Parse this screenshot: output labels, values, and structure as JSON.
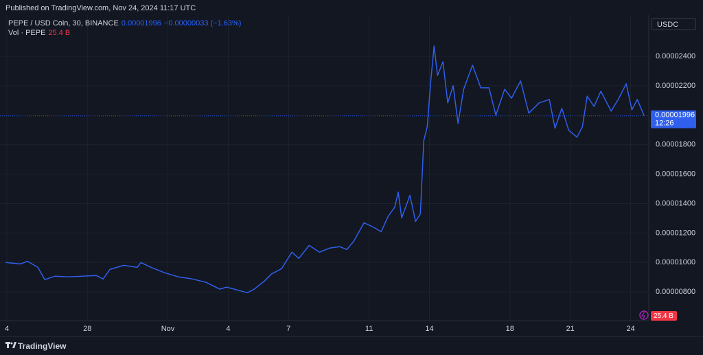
{
  "header": "Published on TradingView.com, Nov 24, 2024 11:17 UTC",
  "legend": {
    "symbol": "PEPE / USD Coin, 30, BINANCE",
    "last": "0.00001996",
    "change": "−0.00000033 (−1.63%)",
    "volume_name": "Vol · PEPE",
    "volume": "25.4 B"
  },
  "currency": "USDC",
  "countdown": "12:26",
  "brand": "TradingView",
  "chart_data": {
    "type": "line",
    "x": [
      -0.07,
      0.68,
      1.02,
      1.54,
      1.88,
      2.39,
      3.07,
      3.75,
      4.44,
      4.78,
      5.12,
      5.8,
      6.48,
      6.66,
      7.17,
      7.85,
      8.53,
      9.22,
      9.9,
      10.58,
      10.92,
      11.43,
      11.95,
      12.29,
      12.8,
      13.14,
      13.65,
      14.16,
      14.51,
      15.02,
      15.53,
      16.04,
      16.55,
      16.89,
      17.24,
      17.75,
      18.26,
      18.6,
      18.94,
      19.28,
      19.45,
      19.62,
      20.03,
      20.31,
      20.55,
      20.72,
      20.89,
      21.06,
      21.23,
      21.4,
      21.67,
      21.91,
      22.18,
      22.42,
      22.7,
      23.14,
      23.55,
      23.96,
      24.3,
      24.74,
      25.08,
      25.53,
      25.94,
      26.45,
      26.96,
      27.24,
      27.58,
      27.92,
      28.33,
      28.6,
      28.84,
      29.18,
      29.52,
      30.03,
      30.38,
      30.78,
      31.06,
      31.33,
      31.67
    ],
    "series": [
      {
        "name": "PEPE / USD Coin",
        "color": "#2f5fec",
        "values": [
          1e-05,
          9.9e-06,
          1.009e-05,
          9.67e-06,
          8.84e-06,
          9.07e-06,
          9.02e-06,
          9.07e-06,
          9.12e-06,
          8.88e-06,
          9.53e-06,
          9.81e-06,
          9.67e-06,
          1e-05,
          9.67e-06,
          9.3e-06,
          9.02e-06,
          8.88e-06,
          8.65e-06,
          8.19e-06,
          8.33e-06,
          8.14e-06,
          7.95e-06,
          8.19e-06,
          8.74e-06,
          9.21e-06,
          9.58e-06,
          1.07e-05,
          1.028e-05,
          1.116e-05,
          1.07e-05,
          1.098e-05,
          1.107e-05,
          1.088e-05,
          1.144e-05,
          1.27e-05,
          1.237e-05,
          1.209e-05,
          1.312e-05,
          1.377e-05,
          1.479e-05,
          1.302e-05,
          1.456e-05,
          1.279e-05,
          1.33e-05,
          1.828e-05,
          1.921e-05,
          2.223e-05,
          2.47e-05,
          2.27e-05,
          2.363e-05,
          2.084e-05,
          2.2e-05,
          1.944e-05,
          2.177e-05,
          2.34e-05,
          2.186e-05,
          2.186e-05,
          2e-05,
          2.177e-05,
          2.116e-05,
          2.233e-05,
          2.014e-05,
          2.084e-05,
          2.107e-05,
          1.912e-05,
          2.047e-05,
          1.898e-05,
          1.851e-05,
          1.921e-05,
          2.13e-05,
          2.06e-05,
          2.163e-05,
          2.028e-05,
          2.107e-05,
          2.214e-05,
          2.037e-05,
          2.107e-05,
          1.996e-05
        ]
      }
    ],
    "xlim": [
      -0.07,
      31.9
    ],
    "xticks": [
      {
        "value": 0,
        "label": "4"
      },
      {
        "value": 4,
        "label": "28"
      },
      {
        "value": 8,
        "label": "Nov"
      },
      {
        "value": 11,
        "label": "4"
      },
      {
        "value": 14,
        "label": "7"
      },
      {
        "value": 18,
        "label": "11"
      },
      {
        "value": 21,
        "label": "14"
      },
      {
        "value": 25,
        "label": "18"
      },
      {
        "value": 28,
        "label": "21"
      },
      {
        "value": 31,
        "label": "24"
      }
    ],
    "ylim": [
      6.05e-06,
      2.68e-05
    ],
    "yticks": [
      {
        "value": 8e-06,
        "label": "0.00000800"
      },
      {
        "value": 1e-05,
        "label": "0.00001000"
      },
      {
        "value": 1.2e-05,
        "label": "0.00001200"
      },
      {
        "value": 1.4e-05,
        "label": "0.00001400"
      },
      {
        "value": 1.6e-05,
        "label": "0.00001600"
      },
      {
        "value": 1.8e-05,
        "label": "0.00001800"
      },
      {
        "value": 2.2e-05,
        "label": "0.00002200"
      },
      {
        "value": 2.4e-05,
        "label": "0.00002400"
      }
    ],
    "grid": true
  }
}
